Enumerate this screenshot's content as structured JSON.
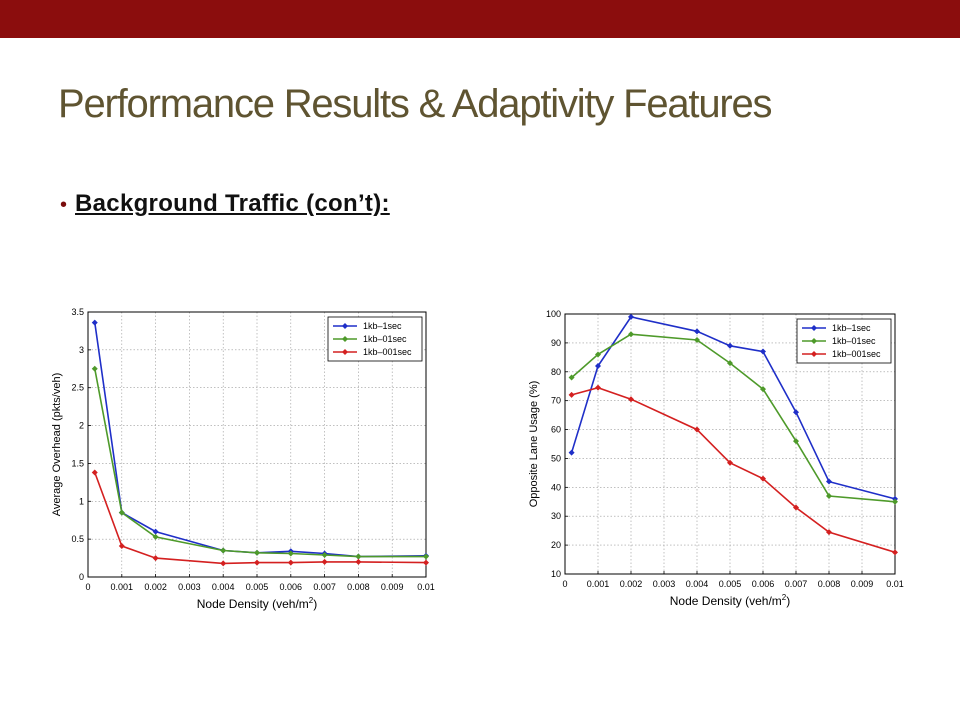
{
  "colors": {
    "accent_bar": "#8b0d0d",
    "title": "#5f5431",
    "bullet": "#7a0c0c"
  },
  "slide": {
    "title": "Performance Results & Adaptivity Features",
    "bullet": "Background Traffic (con’t):"
  },
  "chart_data": [
    {
      "type": "line",
      "title": "",
      "xlabel": "Node Density (veh/m",
      "xlabel_sup": "2",
      "xlabel_close": ")",
      "ylabel": "Average Overhead (pkts/veh)",
      "xlim": [
        0,
        0.01
      ],
      "ylim": [
        0,
        3.5
      ],
      "xticks": [
        "0",
        "0.001",
        "0.002",
        "0.003",
        "0.004",
        "0.005",
        "0.006",
        "0.007",
        "0.008",
        "0.009",
        "0.01"
      ],
      "yticks": [
        "0",
        "0.5",
        "1",
        "1.5",
        "2",
        "2.5",
        "3",
        "3.5"
      ],
      "grid": true,
      "legend_position": "top-right",
      "x": [
        0.0002,
        0.001,
        0.002,
        0.004,
        0.005,
        0.006,
        0.007,
        0.008,
        0.01
      ],
      "series": [
        {
          "name": "1kb–1sec",
          "color": "#1f2fc8",
          "values": [
            3.36,
            0.85,
            0.6,
            0.35,
            0.32,
            0.34,
            0.31,
            0.27,
            0.28
          ]
        },
        {
          "name": "1kb–01sec",
          "color": "#4e9a2a",
          "values": [
            2.75,
            0.85,
            0.53,
            0.35,
            0.32,
            0.31,
            0.29,
            0.27,
            0.27
          ]
        },
        {
          "name": "1kb–001sec",
          "color": "#d42020",
          "values": [
            1.38,
            0.41,
            0.25,
            0.18,
            0.19,
            0.19,
            0.2,
            0.2,
            0.19
          ]
        }
      ]
    },
    {
      "type": "line",
      "title": "",
      "xlabel": "Node Density (veh/m",
      "xlabel_sup": "2",
      "xlabel_close": ")",
      "ylabel": "Opposite Lane Usage (%)",
      "xlim": [
        0,
        0.01
      ],
      "ylim": [
        10,
        100
      ],
      "xticks": [
        "0",
        "0.001",
        "0.002",
        "0.003",
        "0.004",
        "0.005",
        "0.006",
        "0.007",
        "0.008",
        "0.009",
        "0.01"
      ],
      "yticks": [
        "10",
        "20",
        "30",
        "40",
        "50",
        "60",
        "70",
        "80",
        "90",
        "100"
      ],
      "grid": true,
      "legend_position": "top-right",
      "x": [
        0.0002,
        0.001,
        0.002,
        0.004,
        0.005,
        0.006,
        0.007,
        0.008,
        0.01
      ],
      "series": [
        {
          "name": "1kb–1sec",
          "color": "#1f2fc8",
          "values": [
            52,
            82,
            99,
            94,
            89,
            87,
            66,
            42,
            36
          ]
        },
        {
          "name": "1kb–01sec",
          "color": "#4e9a2a",
          "values": [
            78,
            86,
            93,
            91,
            83,
            74,
            56,
            37,
            35
          ]
        },
        {
          "name": "1kb–001sec",
          "color": "#d42020",
          "values": [
            72,
            74.5,
            70.5,
            60,
            48.5,
            43,
            33,
            24.5,
            17.5
          ]
        }
      ]
    }
  ]
}
